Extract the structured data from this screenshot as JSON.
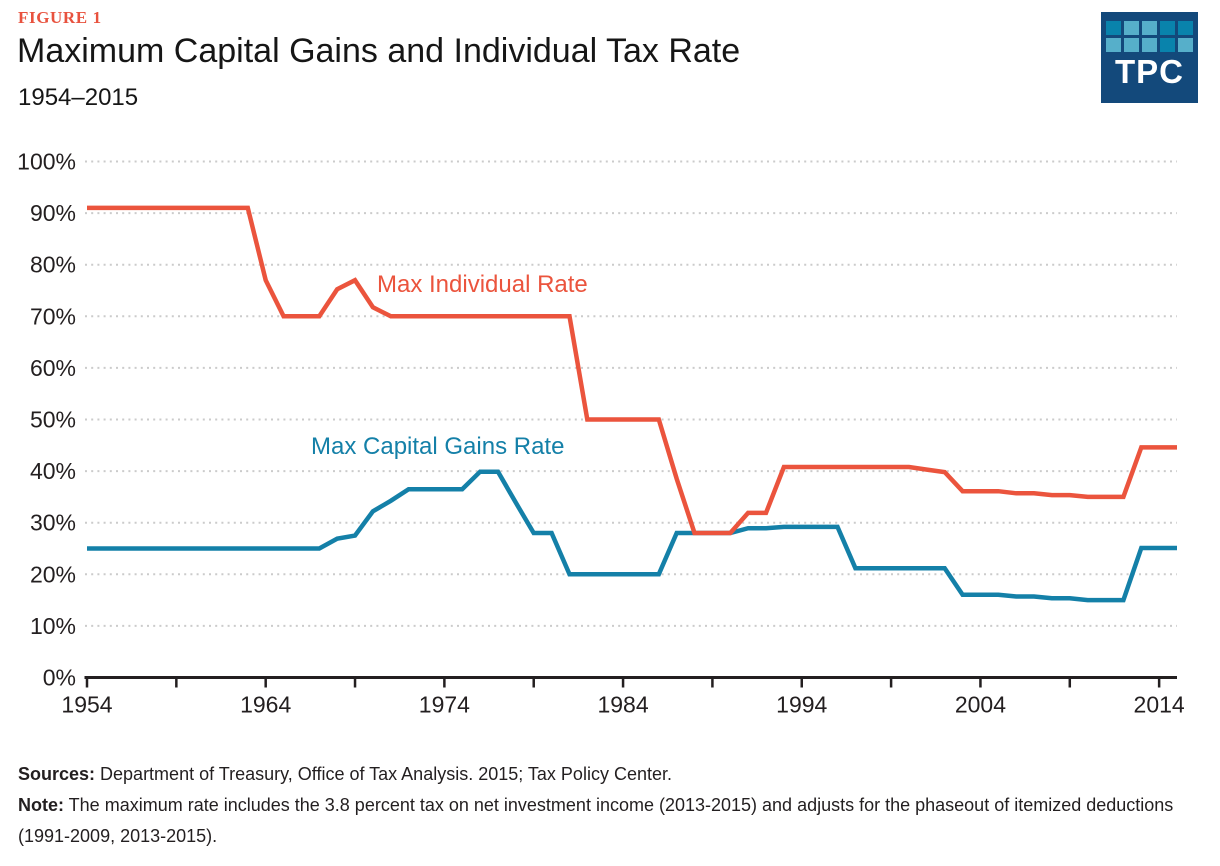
{
  "figure_label": "FIGURE 1",
  "logo": {
    "text": "TPC",
    "background": "#13497B",
    "squares": [
      "#0983AC",
      "#56AFCA",
      "#56AFCA",
      "#0983AC",
      "#0983AC",
      "#56AFCA",
      "#56AFCA",
      "#56AFCA",
      "#0983AC",
      "#56AFCA"
    ]
  },
  "chart_data": {
    "type": "line",
    "title": "Maximum Capital Gains and Individual Tax Rate",
    "subtitle": "1954–2015",
    "grid": "dotted horizontal gridlines, solid bottom axis, legend as in-chart text labels",
    "colors": {
      "axis_text": "#231f20",
      "gridline": "#cbcbcb",
      "axis_line": "#231f20"
    },
    "x_axis": {
      "min": 1954,
      "max": 2015,
      "minor_tick_step": 5,
      "tick_labels": [
        "1954",
        "1964",
        "1974",
        "1984",
        "1994",
        "2004",
        "2014"
      ],
      "tick_label_values": [
        1954,
        1964,
        1974,
        1984,
        1994,
        2004,
        2014
      ]
    },
    "y_axis": {
      "min": 0,
      "max": 100,
      "tick_step": 10,
      "tick_labels": [
        "0%",
        "10%",
        "20%",
        "30%",
        "40%",
        "50%",
        "60%",
        "70%",
        "80%",
        "90%",
        "100%"
      ]
    },
    "series": [
      {
        "name": "Max Individual Rate",
        "color": "#EB543D",
        "points": [
          [
            1954,
            91
          ],
          [
            1963,
            91
          ],
          [
            1964,
            77
          ],
          [
            1965,
            70
          ],
          [
            1967,
            70
          ],
          [
            1968,
            75.25
          ],
          [
            1969,
            77
          ],
          [
            1970,
            71.75
          ],
          [
            1971,
            70
          ],
          [
            1981,
            70
          ],
          [
            1982,
            50
          ],
          [
            1986,
            50
          ],
          [
            1987,
            38.5
          ],
          [
            1988,
            28
          ],
          [
            1990,
            28
          ],
          [
            1991,
            31.9
          ],
          [
            1992,
            31.9
          ],
          [
            1993,
            40.8
          ],
          [
            2000,
            40.8
          ],
          [
            2001,
            40.3
          ],
          [
            2002,
            39.8
          ],
          [
            2003,
            36.1
          ],
          [
            2005,
            36.1
          ],
          [
            2006,
            35.7
          ],
          [
            2007,
            35.7
          ],
          [
            2008,
            35.35
          ],
          [
            2009,
            35.35
          ],
          [
            2010,
            35
          ],
          [
            2012,
            35
          ],
          [
            2013,
            44.6
          ],
          [
            2015,
            44.6
          ]
        ]
      },
      {
        "name": "Max Capital Gains Rate",
        "color": "#1480A8",
        "points": [
          [
            1954,
            25
          ],
          [
            1967,
            25
          ],
          [
            1968,
            26.9
          ],
          [
            1969,
            27.5
          ],
          [
            1970,
            32.21
          ],
          [
            1971,
            34.25
          ],
          [
            1972,
            36.5
          ],
          [
            1975,
            36.5
          ],
          [
            1976,
            39.875
          ],
          [
            1977,
            39.875
          ],
          [
            1978,
            33.85
          ],
          [
            1979,
            28
          ],
          [
            1980,
            28
          ],
          [
            1981,
            20
          ],
          [
            1986,
            20
          ],
          [
            1987,
            28
          ],
          [
            1990,
            28
          ],
          [
            1991,
            28.93
          ],
          [
            1992,
            28.93
          ],
          [
            1993,
            29.19
          ],
          [
            1996,
            29.19
          ],
          [
            1997,
            21.19
          ],
          [
            2002,
            21.19
          ],
          [
            2003,
            16.05
          ],
          [
            2005,
            16.05
          ],
          [
            2006,
            15.7
          ],
          [
            2007,
            15.7
          ],
          [
            2008,
            15.35
          ],
          [
            2009,
            15.35
          ],
          [
            2010,
            15
          ],
          [
            2012,
            15
          ],
          [
            2013,
            25.1
          ],
          [
            2015,
            25.1
          ]
        ]
      }
    ]
  },
  "footer": {
    "sources_label": "Sources:",
    "sources_text": " Department of Treasury, Office of Tax Analysis. 2015; Tax Policy Center.",
    "note_label": "Note:",
    "note_text": " The maximum rate includes the 3.8 percent tax on net investment income (2013-2015) and adjusts for the phaseout of itemized deductions (1991-2009, 2013-2015)."
  }
}
